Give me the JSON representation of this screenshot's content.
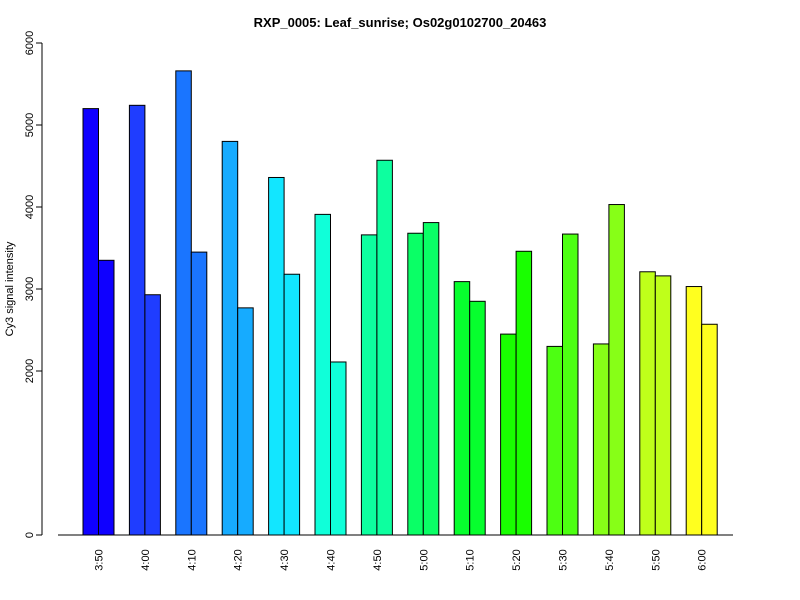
{
  "chart_data": {
    "type": "bar",
    "title": "RXP_0005: Leaf_sunrise; Os02g0102700_20463",
    "xlabel": "",
    "ylabel": "Cy3 signal intensity",
    "ylim": [
      0,
      6000
    ],
    "yticks": [
      0,
      2000,
      3000,
      4000,
      5000,
      6000
    ],
    "grid": false,
    "legend": "none",
    "bar_border_color": "#000000",
    "categories": [
      "3:50",
      "4:00",
      "4:10",
      "4:20",
      "4:30",
      "4:40",
      "4:50",
      "5:00",
      "5:10",
      "5:20",
      "5:30",
      "5:40",
      "5:50",
      "6:00"
    ],
    "colors": [
      "#0F00FF",
      "#1F3DFF",
      "#1A75FF",
      "#16ABFF",
      "#12E6FF",
      "#10FFD9",
      "#0DFF9F",
      "#0AFF66",
      "#07FF2E",
      "#19FF00",
      "#4DFF12",
      "#87FF17",
      "#BFFF1A",
      "#FFFF1F"
    ],
    "series": [
      {
        "values": [
          5200,
          5240,
          5660,
          4800,
          4360,
          3910,
          3660,
          3680,
          3090,
          2450,
          2300,
          2330,
          3210,
          3030
        ]
      },
      {
        "values": [
          3350,
          2930,
          3450,
          2770,
          3180,
          2110,
          4570,
          3810,
          2850,
          3460,
          3670,
          4030,
          3160,
          2570
        ]
      }
    ]
  }
}
